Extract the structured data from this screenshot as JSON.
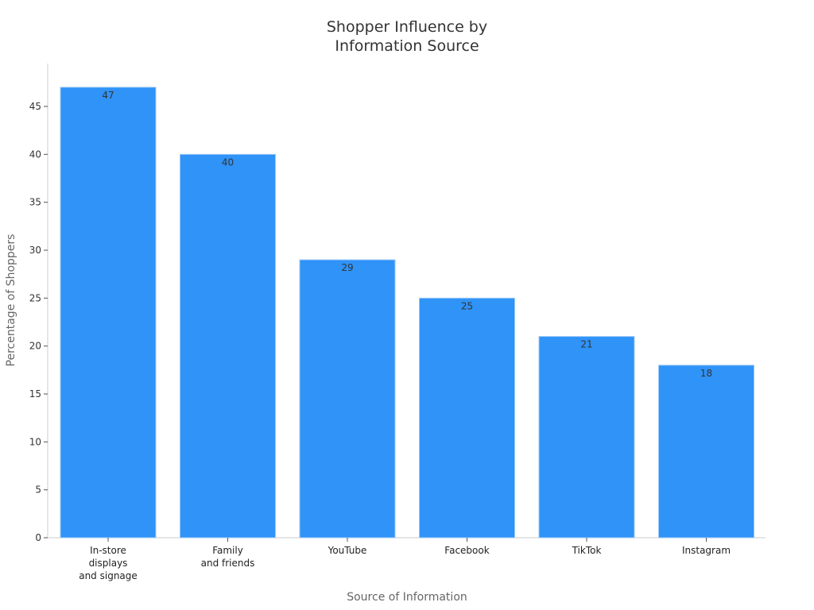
{
  "chart_data": {
    "type": "bar",
    "title": "Shopper Influence by\nInformation Source",
    "title_lines": [
      "Shopper Influence by",
      "Information Source"
    ],
    "xlabel": "Source of Information",
    "ylabel": "Percentage of Shoppers",
    "categories": [
      "In-store\ndisplays\nand signage",
      "Family\nand friends",
      "YouTube",
      "Facebook",
      "TikTok",
      "Instagram"
    ],
    "values": [
      47,
      40,
      29,
      25,
      21,
      18
    ],
    "yticks": [
      0,
      5,
      10,
      15,
      20,
      25,
      30,
      35,
      40,
      45
    ],
    "ylim": [
      0,
      49.5
    ],
    "grid": false,
    "bar_color": "#2f93f8",
    "data_labels": true
  }
}
